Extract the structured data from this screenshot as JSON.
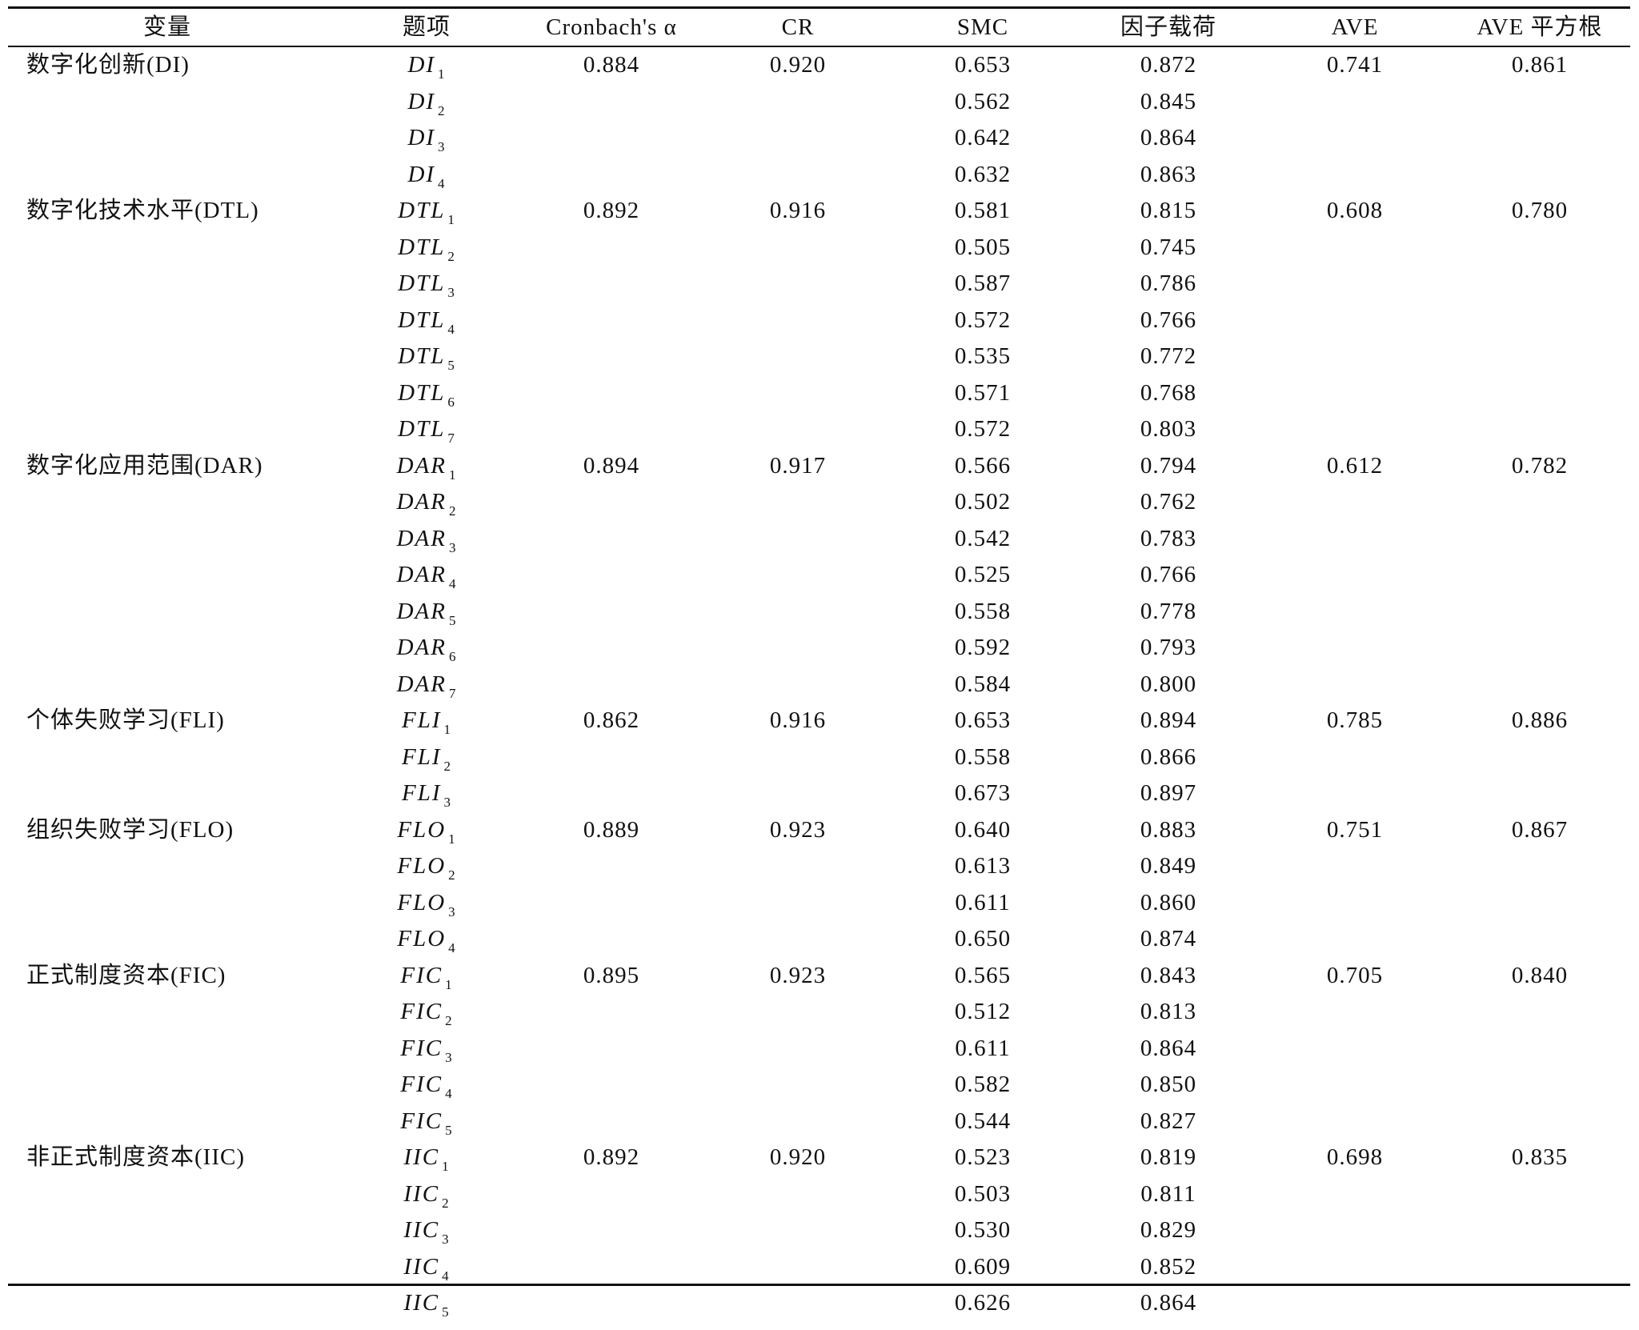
{
  "table": {
    "header": [
      "变量",
      "题项",
      "Cronbach's α",
      "CR",
      "SMC",
      "因子载荷",
      "AVE",
      "AVE 平方根"
    ],
    "groups": [
      {
        "variable": "数字化创新(DI)",
        "cronbach": "0.884",
        "cr": "0.920",
        "ave": "0.741",
        "ave_sqrt": "0.861",
        "items": [
          {
            "code": "DI",
            "sub": "1",
            "smc": "0.653",
            "loading": "0.872"
          },
          {
            "code": "DI",
            "sub": "2",
            "smc": "0.562",
            "loading": "0.845"
          },
          {
            "code": "DI",
            "sub": "3",
            "smc": "0.642",
            "loading": "0.864"
          },
          {
            "code": "DI",
            "sub": "4",
            "smc": "0.632",
            "loading": "0.863"
          }
        ]
      },
      {
        "variable": "数字化技术水平(DTL)",
        "cronbach": "0.892",
        "cr": "0.916",
        "ave": "0.608",
        "ave_sqrt": "0.780",
        "items": [
          {
            "code": "DTL",
            "sub": "1",
            "smc": "0.581",
            "loading": "0.815"
          },
          {
            "code": "DTL",
            "sub": "2",
            "smc": "0.505",
            "loading": "0.745"
          },
          {
            "code": "DTL",
            "sub": "3",
            "smc": "0.587",
            "loading": "0.786"
          },
          {
            "code": "DTL",
            "sub": "4",
            "smc": "0.572",
            "loading": "0.766"
          },
          {
            "code": "DTL",
            "sub": "5",
            "smc": "0.535",
            "loading": "0.772"
          },
          {
            "code": "DTL",
            "sub": "6",
            "smc": "0.571",
            "loading": "0.768"
          },
          {
            "code": "DTL",
            "sub": "7",
            "smc": "0.572",
            "loading": "0.803"
          }
        ]
      },
      {
        "variable": "数字化应用范围(DAR)",
        "cronbach": "0.894",
        "cr": "0.917",
        "ave": "0.612",
        "ave_sqrt": "0.782",
        "items": [
          {
            "code": "DAR",
            "sub": "1",
            "smc": "0.566",
            "loading": "0.794"
          },
          {
            "code": "DAR",
            "sub": "2",
            "smc": "0.502",
            "loading": "0.762"
          },
          {
            "code": "DAR",
            "sub": "3",
            "smc": "0.542",
            "loading": "0.783"
          },
          {
            "code": "DAR",
            "sub": "4",
            "smc": "0.525",
            "loading": "0.766"
          },
          {
            "code": "DAR",
            "sub": "5",
            "smc": "0.558",
            "loading": "0.778"
          },
          {
            "code": "DAR",
            "sub": "6",
            "smc": "0.592",
            "loading": "0.793"
          },
          {
            "code": "DAR",
            "sub": "7",
            "smc": "0.584",
            "loading": "0.800"
          }
        ]
      },
      {
        "variable": "个体失败学习(FLI)",
        "cronbach": "0.862",
        "cr": "0.916",
        "ave": "0.785",
        "ave_sqrt": "0.886",
        "items": [
          {
            "code": "FLI",
            "sub": "1",
            "smc": "0.653",
            "loading": "0.894"
          },
          {
            "code": "FLI",
            "sub": "2",
            "smc": "0.558",
            "loading": "0.866"
          },
          {
            "code": "FLI",
            "sub": "3",
            "smc": "0.673",
            "loading": "0.897"
          }
        ]
      },
      {
        "variable": "组织失败学习(FLO)",
        "cronbach": "0.889",
        "cr": "0.923",
        "ave": "0.751",
        "ave_sqrt": "0.867",
        "items": [
          {
            "code": "FLO",
            "sub": "1",
            "smc": "0.640",
            "loading": "0.883"
          },
          {
            "code": "FLO",
            "sub": "2",
            "smc": "0.613",
            "loading": "0.849"
          },
          {
            "code": "FLO",
            "sub": "3",
            "smc": "0.611",
            "loading": "0.860"
          },
          {
            "code": "FLO",
            "sub": "4",
            "smc": "0.650",
            "loading": "0.874"
          }
        ]
      },
      {
        "variable": "正式制度资本(FIC)",
        "cronbach": "0.895",
        "cr": "0.923",
        "ave": "0.705",
        "ave_sqrt": "0.840",
        "items": [
          {
            "code": "FIC",
            "sub": "1",
            "smc": "0.565",
            "loading": "0.843"
          },
          {
            "code": "FIC",
            "sub": "2",
            "smc": "0.512",
            "loading": "0.813"
          },
          {
            "code": "FIC",
            "sub": "3",
            "smc": "0.611",
            "loading": "0.864"
          },
          {
            "code": "FIC",
            "sub": "4",
            "smc": "0.582",
            "loading": "0.850"
          },
          {
            "code": "FIC",
            "sub": "5",
            "smc": "0.544",
            "loading": "0.827"
          }
        ]
      },
      {
        "variable": "非正式制度资本(IIC)",
        "cronbach": "0.892",
        "cr": "0.920",
        "ave": "0.698",
        "ave_sqrt": "0.835",
        "items": [
          {
            "code": "IIC",
            "sub": "1",
            "smc": "0.523",
            "loading": "0.819"
          },
          {
            "code": "IIC",
            "sub": "2",
            "smc": "0.503",
            "loading": "0.811"
          },
          {
            "code": "IIC",
            "sub": "3",
            "smc": "0.530",
            "loading": "0.829"
          },
          {
            "code": "IIC",
            "sub": "4",
            "smc": "0.609",
            "loading": "0.852"
          },
          {
            "code": "IIC",
            "sub": "5",
            "smc": "0.626",
            "loading": "0.864"
          }
        ]
      }
    ]
  }
}
